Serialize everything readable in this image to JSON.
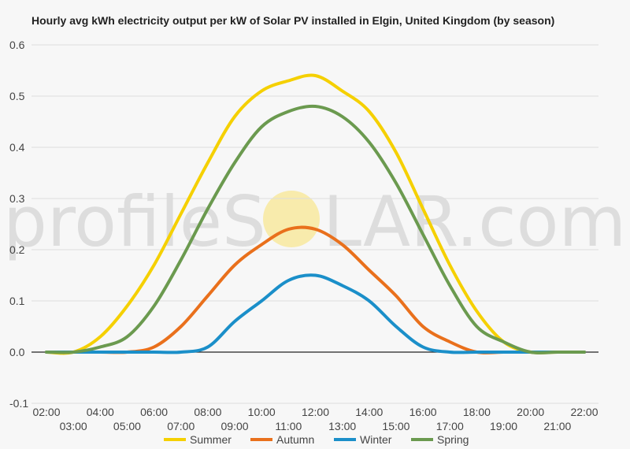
{
  "chart_data": {
    "type": "line",
    "title": "Hourly avg kWh electricity output per kW of Solar PV installed in Elgin, United Kingdom (by season)",
    "xlabel": "",
    "ylabel": "",
    "x": [
      "02:00",
      "03:00",
      "04:00",
      "05:00",
      "06:00",
      "07:00",
      "08:00",
      "09:00",
      "10:00",
      "11:00",
      "12:00",
      "13:00",
      "14:00",
      "15:00",
      "16:00",
      "17:00",
      "18:00",
      "19:00",
      "20:00",
      "21:00",
      "22:00"
    ],
    "ylim": [
      -0.1,
      0.6
    ],
    "yticks": [
      "0.6",
      "0.5",
      "0.4",
      "0.3",
      "0.2",
      "0.1",
      "0.0",
      "-0.1"
    ],
    "grid": true,
    "legend_position": "bottom",
    "series": [
      {
        "name": "Summer",
        "color": "#f5d000",
        "values": [
          0.0,
          0.0,
          0.03,
          0.09,
          0.17,
          0.27,
          0.37,
          0.46,
          0.51,
          0.53,
          0.54,
          0.51,
          0.47,
          0.39,
          0.28,
          0.17,
          0.08,
          0.02,
          0.0,
          0.0,
          0.0
        ]
      },
      {
        "name": "Autumn",
        "color": "#e9701c",
        "values": [
          0.0,
          0.0,
          0.0,
          0.0,
          0.01,
          0.05,
          0.11,
          0.17,
          0.21,
          0.24,
          0.24,
          0.21,
          0.16,
          0.11,
          0.05,
          0.02,
          0.0,
          0.0,
          0.0,
          0.0,
          0.0
        ]
      },
      {
        "name": "Winter",
        "color": "#1b8fc9",
        "values": [
          0.0,
          0.0,
          0.0,
          0.0,
          0.0,
          0.0,
          0.01,
          0.06,
          0.1,
          0.14,
          0.15,
          0.13,
          0.1,
          0.05,
          0.01,
          0.0,
          0.0,
          0.0,
          0.0,
          0.0,
          0.0
        ]
      },
      {
        "name": "Spring",
        "color": "#6b9a4f",
        "values": [
          0.0,
          0.0,
          0.01,
          0.03,
          0.09,
          0.18,
          0.28,
          0.37,
          0.44,
          0.47,
          0.48,
          0.46,
          0.41,
          0.33,
          0.23,
          0.13,
          0.05,
          0.02,
          0.0,
          0.0,
          0.0
        ]
      }
    ]
  },
  "watermark": {
    "left": "profileS",
    "right": "LAR.com",
    "sun_color": "#f9e27a"
  }
}
